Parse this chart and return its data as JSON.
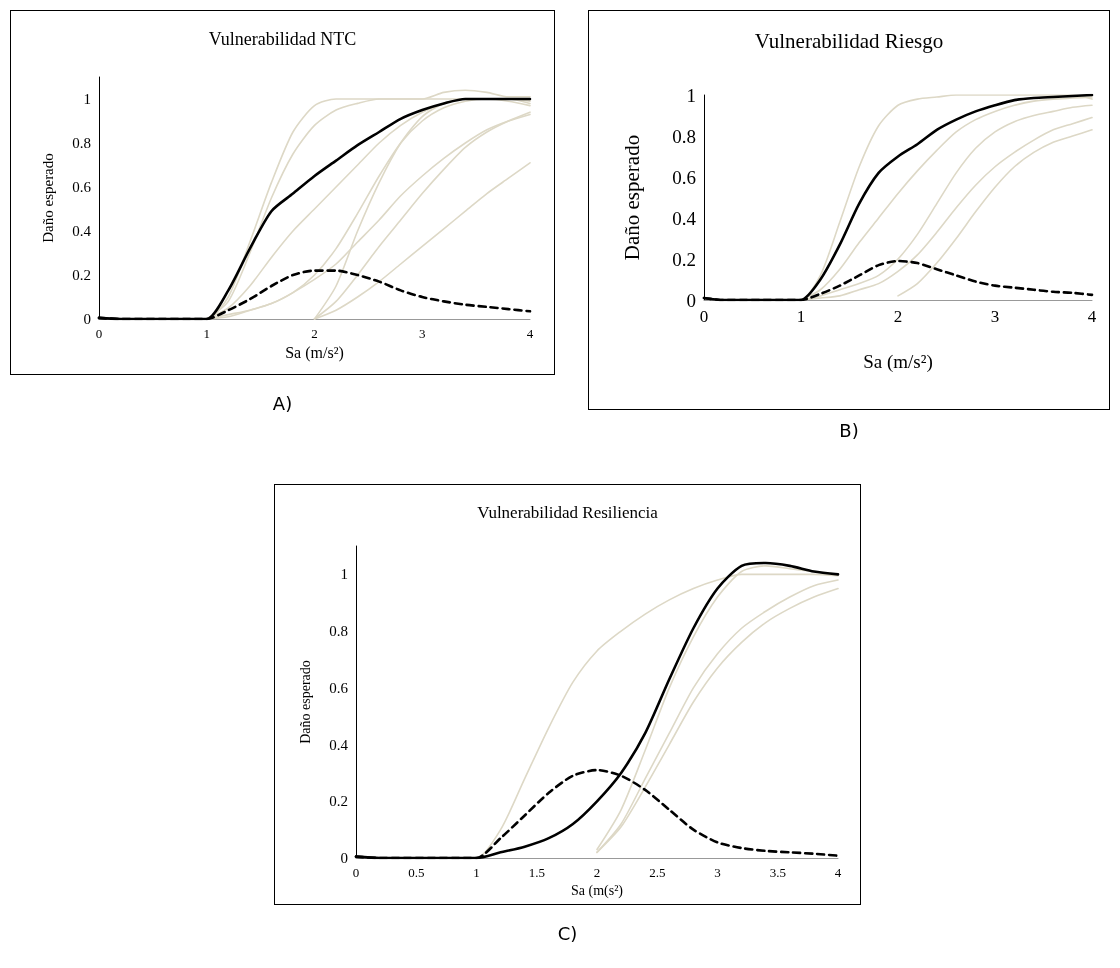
{
  "chart_data": [
    {
      "type": "line",
      "title": "Vulnerabilidad NTC",
      "xlabel": "Sa (m/s²)",
      "ylabel": "Daño esperado",
      "annotations": [
        "A)"
      ],
      "grid": false,
      "marker": "none",
      "x": [
        0,
        0.2,
        0.4,
        0.6,
        0.8,
        1.0,
        1.2,
        1.4,
        1.6,
        1.8,
        2.0,
        2.2,
        2.4,
        2.6,
        2.8,
        3.0,
        3.2,
        3.4,
        3.6,
        3.8,
        4.0
      ],
      "xlim": [
        0,
        4
      ],
      "xticks": [
        0,
        1,
        2,
        3,
        4
      ],
      "ylim": [
        0,
        1.1
      ],
      "yticks": [
        0,
        0.2,
        0.4,
        0.6,
        0.8,
        1
      ],
      "series": [
        {
          "color": "#ddd8c6",
          "values": [
            null,
            0,
            0,
            0,
            0,
            0,
            0.1,
            0.35,
            0.62,
            0.85,
            0.97,
            1.0,
            1.0,
            1.0,
            1.0,
            1.0,
            1.0,
            1.0,
            1.0,
            1.0,
            0.99
          ]
        },
        {
          "color": "#ddd8c6",
          "values": [
            null,
            null,
            null,
            null,
            null,
            0,
            0.08,
            0.3,
            0.55,
            0.75,
            0.88,
            0.95,
            0.98,
            1.0,
            1.0,
            1.0,
            1.03,
            1.04,
            1.03,
            1.01,
            1.01
          ]
        },
        {
          "color": "#ddd8c6",
          "values": [
            null,
            null,
            null,
            null,
            null,
            0,
            0.02,
            0.04,
            0.07,
            0.12,
            0.2,
            0.32,
            0.48,
            0.65,
            0.8,
            0.9,
            0.96,
            0.99,
            1.0,
            1.0,
            0.98
          ]
        },
        {
          "color": "#ddd8c6",
          "values": [
            null,
            null,
            null,
            null,
            null,
            0,
            0.05,
            0.15,
            0.28,
            0.4,
            0.5,
            0.6,
            0.7,
            0.8,
            0.88,
            0.94,
            0.98,
            1.0,
            1.0,
            1.0,
            0.995
          ]
        },
        {
          "color": "#ddd8c6",
          "values": [
            null,
            null,
            null,
            null,
            null,
            0,
            0.01,
            0.04,
            0.07,
            0.12,
            0.18,
            0.25,
            0.35,
            0.45,
            0.56,
            0.65,
            0.73,
            0.8,
            0.86,
            0.9,
            0.93
          ]
        },
        {
          "color": "#ddd8c6",
          "values": [
            null,
            null,
            null,
            null,
            null,
            null,
            null,
            null,
            null,
            null,
            0,
            0.15,
            0.4,
            0.62,
            0.8,
            0.92,
            0.98,
            1.0,
            1.0,
            0.99,
            0.97
          ]
        },
        {
          "color": "#ddd8c6",
          "values": [
            null,
            null,
            null,
            null,
            null,
            null,
            null,
            null,
            null,
            null,
            0,
            0.08,
            0.2,
            0.33,
            0.45,
            0.57,
            0.68,
            0.78,
            0.85,
            0.9,
            0.94
          ]
        },
        {
          "color": "#ddd8c6",
          "values": [
            null,
            null,
            null,
            null,
            null,
            null,
            null,
            null,
            null,
            null,
            0,
            0.04,
            0.1,
            0.17,
            0.25,
            0.33,
            0.41,
            0.49,
            0.57,
            0.64,
            0.71
          ]
        },
        {
          "color": "#000000",
          "values": [
            0.005,
            0,
            0,
            0,
            0,
            0,
            0.13,
            0.32,
            0.49,
            0.57,
            0.65,
            0.72,
            0.79,
            0.85,
            0.91,
            0.95,
            0.98,
            1.0,
            1.0,
            1.0,
            1.0
          ]
        },
        {
          "color": "#000000",
          "line_style": "dashed",
          "values": [
            0.005,
            0,
            0,
            0,
            0,
            0,
            0.04,
            0.09,
            0.15,
            0.2,
            0.22,
            0.22,
            0.2,
            0.17,
            0.13,
            0.1,
            0.08,
            0.065,
            0.055,
            0.045,
            0.035
          ]
        }
      ]
    },
    {
      "type": "line",
      "title": "Vulnerabilidad Riesgo",
      "xlabel": "Sa (m/s²)",
      "ylabel": "Daño esperado",
      "annotations": [
        "B)"
      ],
      "grid": false,
      "marker": "none",
      "x": [
        0,
        0.2,
        0.4,
        0.6,
        0.8,
        1.0,
        1.2,
        1.4,
        1.6,
        1.8,
        2.0,
        2.2,
        2.4,
        2.6,
        2.8,
        3.0,
        3.2,
        3.4,
        3.6,
        3.8,
        4.0
      ],
      "xlim": [
        0,
        4
      ],
      "xticks": [
        0,
        1,
        2,
        3,
        4
      ],
      "ylim": [
        0,
        1
      ],
      "yticks": [
        0,
        0.2,
        0.4,
        0.6,
        0.8,
        1
      ],
      "series": [
        {
          "color": "#ddd8c6",
          "values": [
            null,
            0,
            0,
            0,
            0,
            0,
            0.12,
            0.38,
            0.65,
            0.85,
            0.95,
            0.98,
            0.99,
            1.0,
            1.0,
            1.0,
            1.0,
            1.0,
            1.0,
            1.0,
            0.98
          ]
        },
        {
          "color": "#ddd8c6",
          "values": [
            null,
            null,
            null,
            null,
            null,
            0,
            0.05,
            0.15,
            0.28,
            0.4,
            0.52,
            0.63,
            0.73,
            0.82,
            0.88,
            0.92,
            0.95,
            0.97,
            0.98,
            0.985,
            0.99
          ]
        },
        {
          "color": "#ddd8c6",
          "values": [
            null,
            null,
            null,
            null,
            null,
            0,
            0.02,
            0.05,
            0.08,
            0.12,
            0.2,
            0.32,
            0.47,
            0.62,
            0.74,
            0.82,
            0.87,
            0.9,
            0.92,
            0.94,
            0.95
          ]
        },
        {
          "color": "#ddd8c6",
          "values": [
            null,
            null,
            null,
            null,
            null,
            0,
            0.01,
            0.02,
            0.05,
            0.08,
            0.14,
            0.22,
            0.33,
            0.45,
            0.56,
            0.65,
            0.72,
            0.78,
            0.83,
            0.86,
            0.89
          ]
        },
        {
          "color": "#ddd8c6",
          "values": [
            null,
            null,
            null,
            null,
            null,
            null,
            null,
            null,
            null,
            null,
            0.02,
            0.08,
            0.18,
            0.3,
            0.43,
            0.55,
            0.65,
            0.72,
            0.77,
            0.8,
            0.83
          ]
        },
        {
          "color": "#000000",
          "values": [
            0.01,
            0,
            0,
            0,
            0,
            0,
            0.1,
            0.27,
            0.47,
            0.62,
            0.7,
            0.76,
            0.83,
            0.88,
            0.92,
            0.95,
            0.975,
            0.985,
            0.99,
            0.995,
            1.0
          ]
        },
        {
          "color": "#000000",
          "line_style": "dashed",
          "values": [
            0.01,
            0,
            0,
            0,
            0,
            0,
            0.03,
            0.07,
            0.12,
            0.17,
            0.19,
            0.18,
            0.15,
            0.12,
            0.09,
            0.07,
            0.06,
            0.05,
            0.04,
            0.035,
            0.025
          ]
        }
      ]
    },
    {
      "type": "line",
      "title": "Vulnerabilidad Resiliencia",
      "xlabel": "Sa (m(s²)",
      "ylabel": "Daño esperado",
      "annotations": [
        "C)"
      ],
      "grid": false,
      "marker": "none",
      "x": [
        0,
        0.2,
        0.4,
        0.6,
        0.8,
        1.0,
        1.2,
        1.4,
        1.6,
        1.8,
        2.0,
        2.2,
        2.4,
        2.6,
        2.8,
        3.0,
        3.2,
        3.4,
        3.6,
        3.8,
        4.0
      ],
      "xlim": [
        0,
        4
      ],
      "xticks": [
        0,
        0.5,
        1,
        1.5,
        2,
        2.5,
        3,
        3.5,
        4
      ],
      "ylim": [
        0,
        1.1
      ],
      "yticks": [
        0,
        0.2,
        0.4,
        0.6,
        0.8,
        1
      ],
      "series": [
        {
          "color": "#ddd8c6",
          "values": [
            null,
            0,
            0,
            0,
            0,
            0,
            0.1,
            0.28,
            0.46,
            0.62,
            0.73,
            0.8,
            0.86,
            0.91,
            0.95,
            0.98,
            1.0,
            1.0,
            1.0,
            1.0,
            0.995
          ]
        },
        {
          "color": "#ddd8c6",
          "values": [
            null,
            null,
            null,
            null,
            null,
            null,
            null,
            null,
            null,
            null,
            0.03,
            0.17,
            0.38,
            0.6,
            0.78,
            0.92,
            1.01,
            1.03,
            1.02,
            1.01,
            1.0
          ]
        },
        {
          "color": "#ddd8c6",
          "values": [
            null,
            null,
            null,
            null,
            null,
            null,
            null,
            null,
            null,
            null,
            0.02,
            0.12,
            0.28,
            0.44,
            0.6,
            0.72,
            0.81,
            0.87,
            0.92,
            0.96,
            0.98
          ]
        },
        {
          "color": "#ddd8c6",
          "values": [
            null,
            null,
            null,
            null,
            null,
            null,
            null,
            null,
            null,
            null,
            0.02,
            0.11,
            0.25,
            0.4,
            0.55,
            0.67,
            0.76,
            0.83,
            0.88,
            0.92,
            0.95
          ]
        },
        {
          "color": "#000000",
          "values": [
            0.005,
            0,
            0,
            0,
            0,
            0,
            0.02,
            0.04,
            0.07,
            0.12,
            0.2,
            0.3,
            0.44,
            0.63,
            0.81,
            0.95,
            1.03,
            1.04,
            1.03,
            1.01,
            1.0
          ]
        },
        {
          "color": "#000000",
          "line_style": "dashed",
          "values": [
            0.005,
            0,
            0,
            0,
            0,
            0,
            0.07,
            0.15,
            0.23,
            0.29,
            0.31,
            0.29,
            0.24,
            0.17,
            0.1,
            0.055,
            0.035,
            0.025,
            0.02,
            0.015,
            0.008
          ]
        }
      ]
    }
  ]
}
